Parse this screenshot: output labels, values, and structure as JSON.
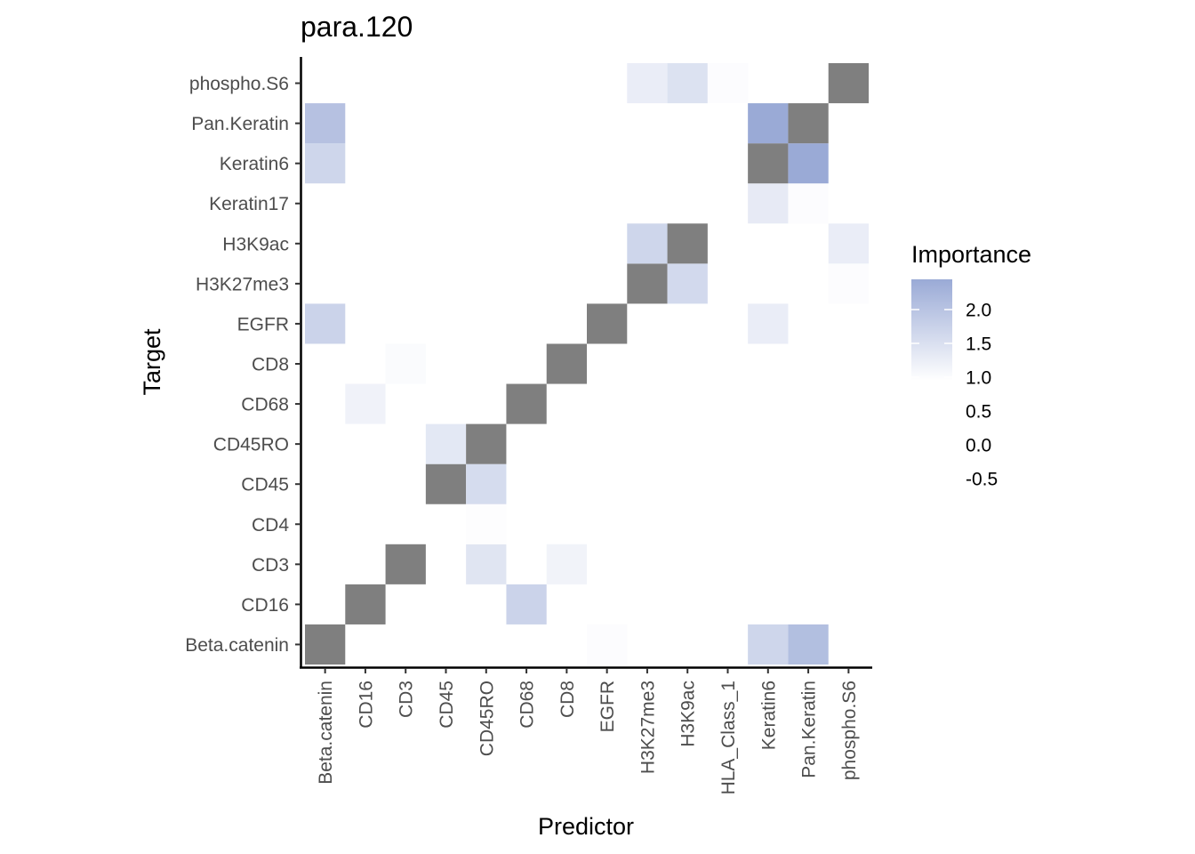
{
  "chart_data": {
    "type": "heatmap",
    "title": "para.120",
    "xlabel": "Predictor",
    "ylabel": "Target",
    "x_categories": [
      "Beta.catenin",
      "CD16",
      "CD3",
      "CD45",
      "CD45RO",
      "CD68",
      "CD8",
      "EGFR",
      "H3K27me3",
      "H3K9ac",
      "HLA_Class_1",
      "Keratin6",
      "Pan.Keratin",
      "phospho.S6"
    ],
    "y_categories": [
      "Beta.catenin",
      "CD16",
      "CD3",
      "CD4",
      "CD45",
      "CD45RO",
      "CD68",
      "CD8",
      "EGFR",
      "H3K27me3",
      "H3K9ac",
      "Keratin17",
      "Keratin6",
      "Pan.Keratin",
      "phospho.S6"
    ],
    "self_cell_color": "#7f7f7f",
    "cells": [
      {
        "x": "Beta.catenin",
        "y": "Beta.catenin",
        "self": true
      },
      {
        "x": "EGFR",
        "y": "Beta.catenin",
        "value": 1.05
      },
      {
        "x": "Keratin6",
        "y": "Beta.catenin",
        "value": 1.7
      },
      {
        "x": "Pan.Keratin",
        "y": "Beta.catenin",
        "value": 2.1
      },
      {
        "x": "CD16",
        "y": "CD16",
        "self": true
      },
      {
        "x": "CD68",
        "y": "CD16",
        "value": 1.75
      },
      {
        "x": "CD3",
        "y": "CD3",
        "self": true
      },
      {
        "x": "CD45RO",
        "y": "CD3",
        "value": 1.45
      },
      {
        "x": "CD8",
        "y": "CD3",
        "value": 1.2
      },
      {
        "x": "CD45RO",
        "y": "CD4",
        "value": 1.03
      },
      {
        "x": "CD45",
        "y": "CD45",
        "self": true
      },
      {
        "x": "CD45RO",
        "y": "CD45",
        "value": 1.6
      },
      {
        "x": "CD45",
        "y": "CD45RO",
        "value": 1.4
      },
      {
        "x": "CD45RO",
        "y": "CD45RO",
        "self": true
      },
      {
        "x": "CD16",
        "y": "CD68",
        "value": 1.22
      },
      {
        "x": "CD68",
        "y": "CD68",
        "self": true
      },
      {
        "x": "CD3",
        "y": "CD8",
        "value": 1.07
      },
      {
        "x": "CD8",
        "y": "CD8",
        "self": true
      },
      {
        "x": "Beta.catenin",
        "y": "EGFR",
        "value": 1.75
      },
      {
        "x": "EGFR",
        "y": "EGFR",
        "self": true
      },
      {
        "x": "Keratin6",
        "y": "EGFR",
        "value": 1.3
      },
      {
        "x": "H3K27me3",
        "y": "H3K27me3",
        "self": true
      },
      {
        "x": "H3K9ac",
        "y": "H3K27me3",
        "value": 1.65
      },
      {
        "x": "phospho.S6",
        "y": "H3K27me3",
        "value": 1.05
      },
      {
        "x": "H3K27me3",
        "y": "H3K9ac",
        "value": 1.7
      },
      {
        "x": "H3K9ac",
        "y": "H3K9ac",
        "self": true
      },
      {
        "x": "phospho.S6",
        "y": "H3K9ac",
        "value": 1.3
      },
      {
        "x": "Keratin6",
        "y": "Keratin17",
        "value": 1.35
      },
      {
        "x": "Pan.Keratin",
        "y": "Keratin17",
        "value": 1.05
      },
      {
        "x": "Beta.catenin",
        "y": "Keratin6",
        "value": 1.7
      },
      {
        "x": "Keratin6",
        "y": "Keratin6",
        "self": true
      },
      {
        "x": "Pan.Keratin",
        "y": "Keratin6",
        "value": 2.45
      },
      {
        "x": "Beta.catenin",
        "y": "Pan.Keratin",
        "value": 2.05
      },
      {
        "x": "Keratin6",
        "y": "Pan.Keratin",
        "value": 2.45
      },
      {
        "x": "Pan.Keratin",
        "y": "Pan.Keratin",
        "self": true
      },
      {
        "x": "H3K27me3",
        "y": "phospho.S6",
        "value": 1.3
      },
      {
        "x": "H3K9ac",
        "y": "phospho.S6",
        "value": 1.5
      },
      {
        "x": "HLA_Class_1",
        "y": "phospho.S6",
        "value": 1.05
      },
      {
        "x": "phospho.S6",
        "y": "phospho.S6",
        "self": true
      }
    ],
    "legend": {
      "title": "Importance",
      "position": "right",
      "breaks": [
        "2.0",
        "1.5",
        "1.0",
        "0.5",
        "0.0",
        "-0.5"
      ],
      "colorbar_range": [
        1.0,
        2.45
      ],
      "low_color": "#ffffff",
      "high_color": "#9aaad6"
    },
    "grid": false
  }
}
